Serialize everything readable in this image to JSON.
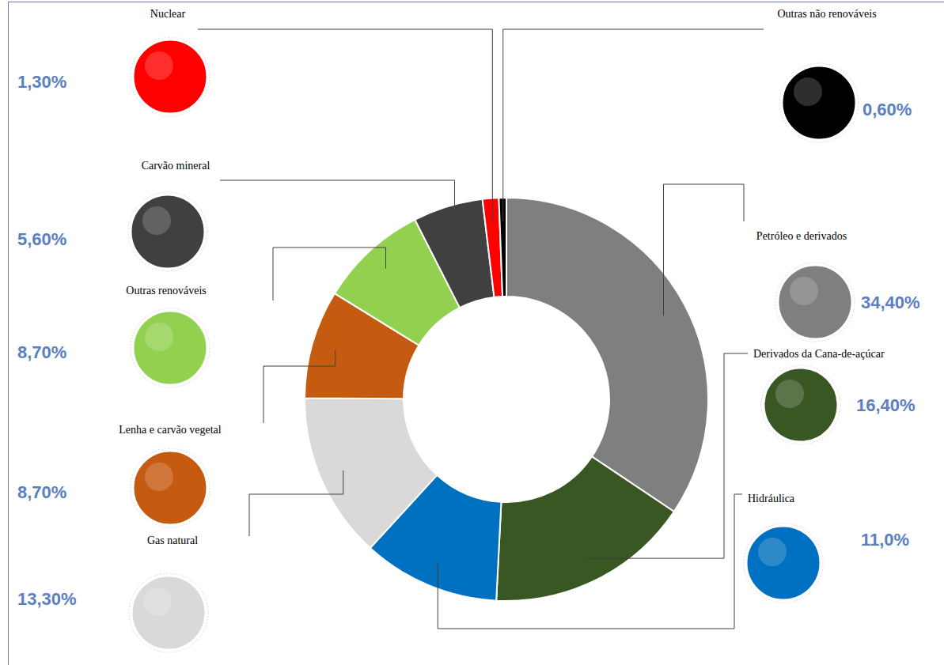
{
  "chart_data": {
    "type": "donut",
    "categories": [
      "Petróleo e derivados",
      "Derivados da Cana-de-açúcar",
      "Hidráulica",
      "Gas natural",
      "Lenha e carvão vegetal",
      "Outras renováveis",
      "Carvão mineral",
      "Nuclear",
      "Outras não renováveis"
    ],
    "values": [
      34.4,
      16.4,
      11.0,
      13.3,
      8.7,
      8.7,
      5.6,
      1.3,
      0.6
    ],
    "value_labels": [
      "34,40%",
      "16,40%",
      "11,0%",
      "13,30%",
      "8,70%",
      "8,70%",
      "5,60%",
      "1,30%",
      "0,60%"
    ],
    "colors": [
      "#7f7f7f",
      "#385723",
      "#0070c0",
      "#d9d9d9",
      "#c55a11",
      "#92d050",
      "#404040",
      "#ff0000",
      "#000000"
    ]
  }
}
